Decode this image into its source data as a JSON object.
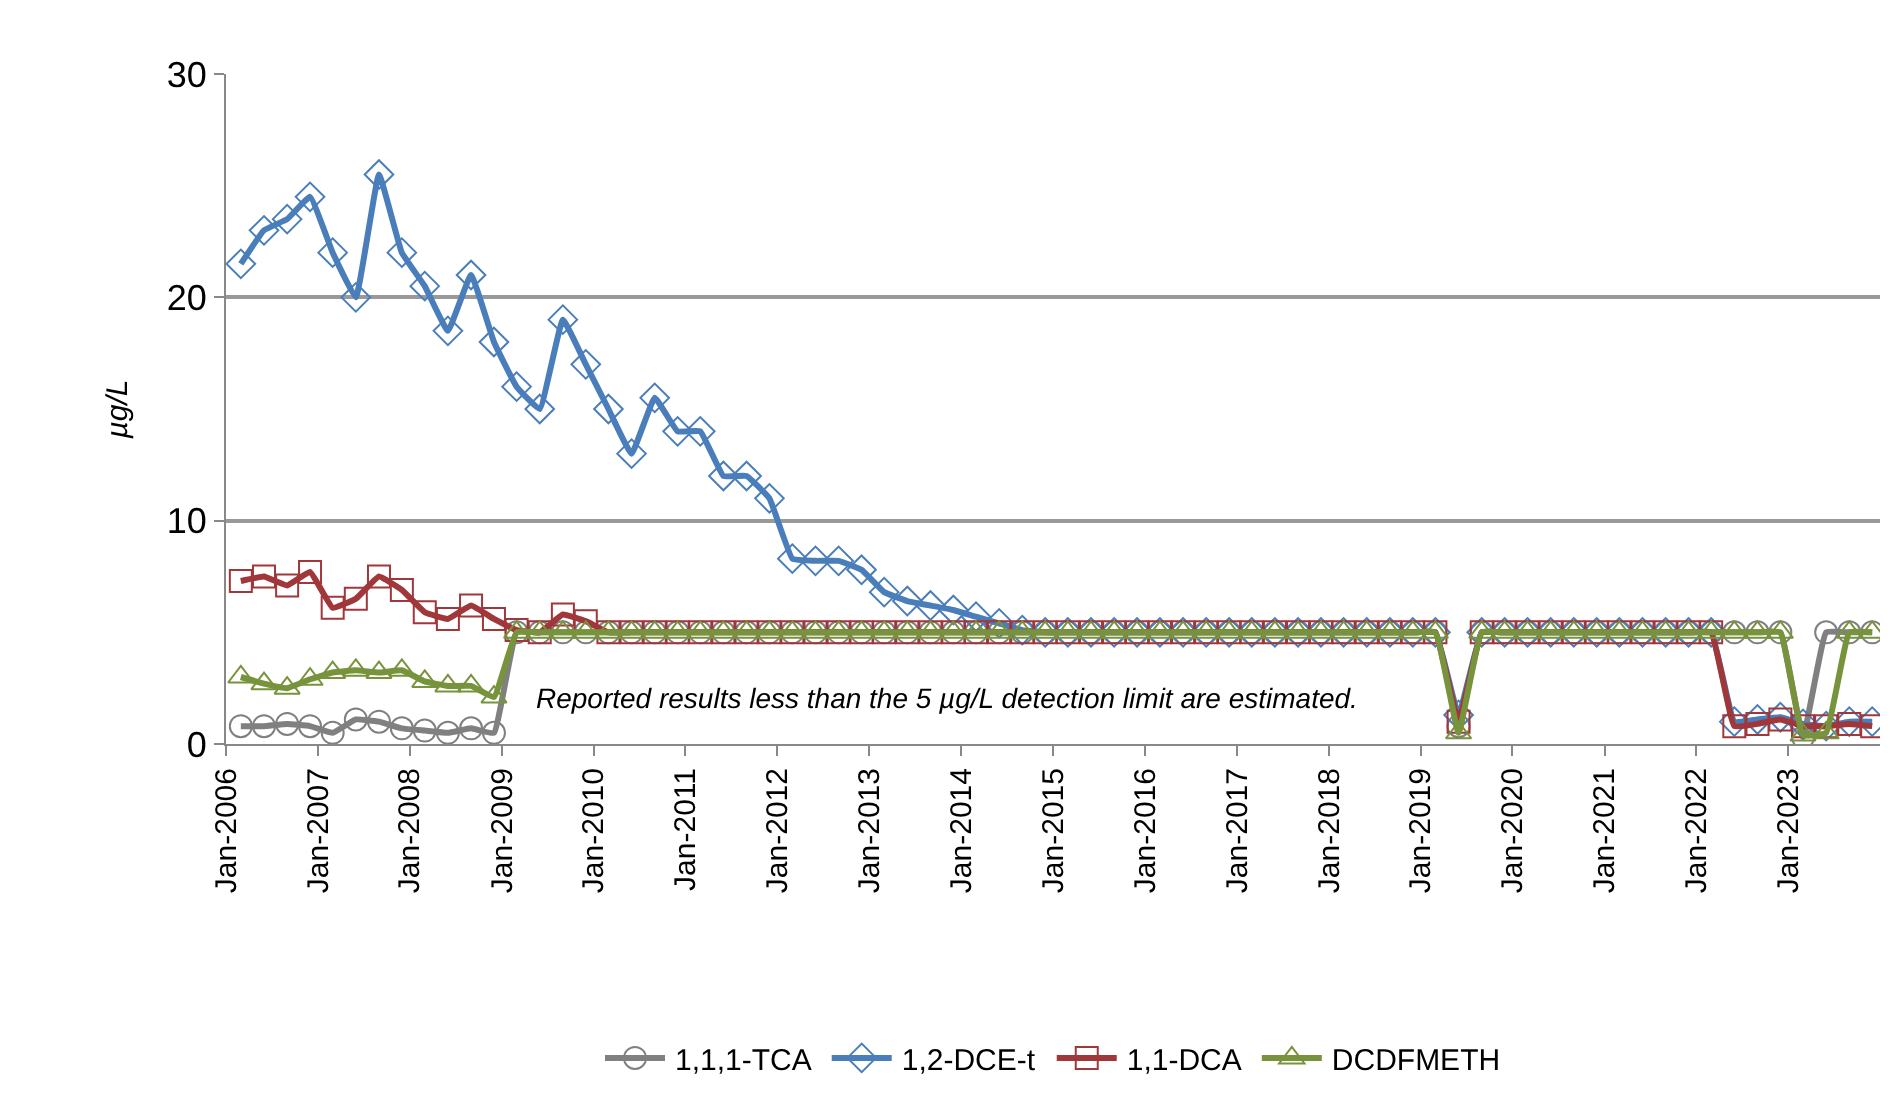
{
  "chart_data": {
    "type": "line",
    "ylabel": "µg/L",
    "x": [
      "2006-03",
      "2006-06",
      "2006-09",
      "2006-12",
      "2007-03",
      "2007-06",
      "2007-09",
      "2007-12",
      "2008-03",
      "2008-06",
      "2008-09",
      "2008-12",
      "2009-03",
      "2009-06",
      "2009-09",
      "2009-12",
      "2010-03",
      "2010-06",
      "2010-09",
      "2010-12",
      "2011-03",
      "2011-06",
      "2011-09",
      "2011-12",
      "2012-03",
      "2012-06",
      "2012-09",
      "2012-12",
      "2013-03",
      "2013-06",
      "2013-09",
      "2013-12",
      "2014-03",
      "2014-06",
      "2014-09",
      "2014-12",
      "2015-03",
      "2015-06",
      "2015-09",
      "2015-12",
      "2016-03",
      "2016-06",
      "2016-09",
      "2016-12",
      "2017-03",
      "2017-06",
      "2017-09",
      "2017-12",
      "2018-03",
      "2018-06",
      "2018-09",
      "2018-12",
      "2019-03",
      "2019-06",
      "2019-09",
      "2019-12",
      "2020-03",
      "2020-06",
      "2020-09",
      "2020-12",
      "2021-03",
      "2021-06",
      "2021-09",
      "2021-12",
      "2022-03",
      "2022-06",
      "2022-09",
      "2022-12",
      "2023-03",
      "2023-06",
      "2023-09",
      "2023-12"
    ],
    "series": [
      {
        "name": "1,1,1-TCA",
        "color": "#808080",
        "marker": "circle",
        "values": [
          0.8,
          0.8,
          0.9,
          0.8,
          0.5,
          1.1,
          1.0,
          0.7,
          0.6,
          0.5,
          0.7,
          0.5,
          5,
          5,
          5,
          5,
          5,
          5,
          5,
          5,
          5,
          5,
          5,
          5,
          5,
          5,
          5,
          5,
          5,
          5,
          5,
          5,
          5,
          5,
          5,
          5,
          5,
          5,
          5,
          5,
          5,
          5,
          5,
          5,
          5,
          5,
          5,
          5,
          5,
          5,
          5,
          5,
          5,
          0.8,
          5,
          5,
          5,
          5,
          5,
          5,
          5,
          5,
          5,
          5,
          5,
          5,
          5,
          5,
          0.3,
          5,
          5,
          5
        ]
      },
      {
        "name": "1,2-DCE-t",
        "color": "#4a7ebb",
        "marker": "diamond",
        "values": [
          21.5,
          23,
          23.5,
          24.5,
          22,
          20,
          25.5,
          22,
          20.5,
          18.5,
          21,
          18,
          16,
          15,
          19,
          17,
          15,
          13,
          15.5,
          14,
          14,
          12,
          12,
          11,
          8.3,
          8.2,
          8.2,
          7.8,
          6.8,
          6.4,
          6.2,
          6.0,
          5.7,
          5.4,
          5.1,
          5,
          5,
          5,
          5,
          5,
          5,
          5,
          5,
          5,
          5,
          5,
          5,
          5,
          5,
          5,
          5,
          5,
          5,
          1.3,
          5,
          5,
          5,
          5,
          5,
          5,
          5,
          5,
          5,
          5,
          5,
          1.0,
          1.1,
          1.2,
          0.9,
          0.8,
          1.0,
          1.0
        ]
      },
      {
        "name": "1,1-DCA",
        "color": "#a0373a",
        "marker": "square",
        "values": [
          7.3,
          7.5,
          7.1,
          7.7,
          6.1,
          6.5,
          7.5,
          6.9,
          5.9,
          5.6,
          6.2,
          5.6,
          5.1,
          5,
          5.8,
          5.5,
          5,
          5,
          5,
          5,
          5,
          5,
          5,
          5,
          5,
          5,
          5,
          5,
          5,
          5,
          5,
          5,
          5,
          5,
          5,
          5,
          5,
          5,
          5,
          5,
          5,
          5,
          5,
          5,
          5,
          5,
          5,
          5,
          5,
          5,
          5,
          5,
          5,
          1.0,
          5,
          5,
          5,
          5,
          5,
          5,
          5,
          5,
          5,
          5,
          5,
          0.8,
          0.9,
          1.1,
          0.8,
          0.8,
          0.9,
          0.8
        ]
      },
      {
        "name": "DCDFMETH",
        "color": "#77933c",
        "marker": "triangle",
        "values": [
          3.0,
          2.7,
          2.5,
          2.9,
          3.2,
          3.3,
          3.2,
          3.3,
          2.8,
          2.6,
          2.6,
          2.1,
          5,
          5,
          5,
          5,
          5,
          5,
          5,
          5,
          5,
          5,
          5,
          5,
          5,
          5,
          5,
          5,
          5,
          5,
          5,
          5,
          5,
          5,
          5,
          5,
          5,
          5,
          5,
          5,
          5,
          5,
          5,
          5,
          5,
          5,
          5,
          5,
          5,
          5,
          5,
          5,
          5,
          0.5,
          5,
          5,
          5,
          5,
          5,
          5,
          5,
          5,
          5,
          5,
          5,
          5,
          5,
          5,
          0.4,
          0.5,
          5,
          5
        ]
      }
    ],
    "annotations": [
      "Reported results less than the 5 µg/L detection limit are estimated."
    ],
    "ylim": [
      0,
      30
    ],
    "yticks": [
      0,
      10,
      20,
      30
    ],
    "xlim": [
      "2006-01",
      "2024-01"
    ],
    "xticks": [
      {
        "value": "2006-01",
        "label": "Jan-2006"
      },
      {
        "value": "2007-01",
        "label": "Jan-2007"
      },
      {
        "value": "2008-01",
        "label": "Jan-2008"
      },
      {
        "value": "2009-01",
        "label": "Jan-2009"
      },
      {
        "value": "2010-01",
        "label": "Jan-2010"
      },
      {
        "value": "2011-01",
        "label": "Jan-2011"
      },
      {
        "value": "2012-01",
        "label": "Jan-2012"
      },
      {
        "value": "2013-01",
        "label": "Jan-2013"
      },
      {
        "value": "2014-01",
        "label": "Jan-2014"
      },
      {
        "value": "2015-01",
        "label": "Jan-2015"
      },
      {
        "value": "2016-01",
        "label": "Jan-2016"
      },
      {
        "value": "2017-01",
        "label": "Jan-2017"
      },
      {
        "value": "2018-01",
        "label": "Jan-2018"
      },
      {
        "value": "2019-01",
        "label": "Jan-2019"
      },
      {
        "value": "2020-01",
        "label": "Jan-2020"
      },
      {
        "value": "2021-01",
        "label": "Jan-2021"
      },
      {
        "value": "2022-01",
        "label": "Jan-2022"
      },
      {
        "value": "2023-01",
        "label": "Jan-2023"
      }
    ],
    "grid": "y",
    "legend": "bottom",
    "line_style": "solid"
  }
}
